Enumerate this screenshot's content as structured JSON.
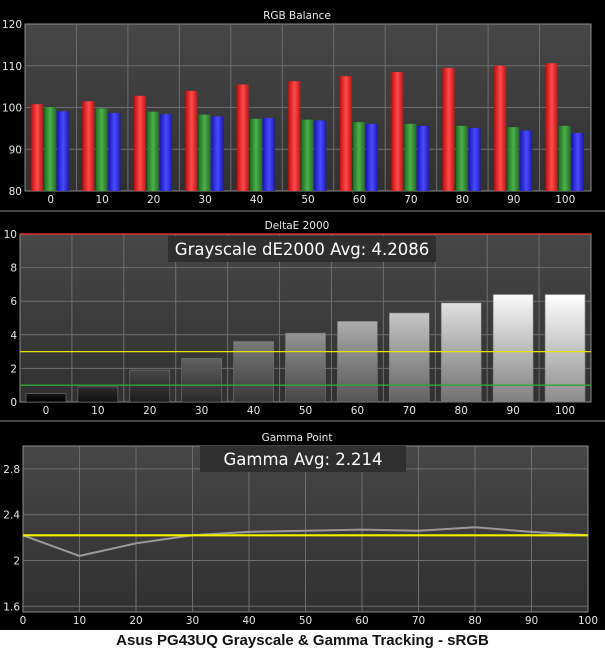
{
  "footer": "Asus PG43UQ Grayscale & Gamma Tracking - sRGB",
  "colors": {
    "background": "#000000",
    "plot_background": "#3c3c3c",
    "grid": "#6e6e6e",
    "red": "#f32a2a",
    "green": "#3c9c3c",
    "blue": "#2f2ff0",
    "threshold_red": "#ff3030",
    "threshold_yellow": "#e4e400",
    "threshold_green": "#2ea82e",
    "gamma_target": "#f2f200",
    "gamma_line": "#9a9a9a"
  },
  "chart_data": [
    {
      "type": "bar",
      "title": "RGB Balance",
      "categories": [
        "0",
        "10",
        "20",
        "30",
        "40",
        "50",
        "60",
        "70",
        "80",
        "90",
        "100"
      ],
      "series": [
        {
          "color_key": "red",
          "values": [
            100.8,
            101.5,
            102.8,
            104.0,
            105.5,
            106.3,
            107.5,
            108.5,
            109.5,
            110.0,
            110.6
          ]
        },
        {
          "color_key": "green",
          "values": [
            100.1,
            99.8,
            99.0,
            98.3,
            97.3,
            97.1,
            96.5,
            96.1,
            95.6,
            95.3,
            95.6
          ]
        },
        {
          "color_key": "blue",
          "values": [
            99.1,
            98.7,
            98.4,
            97.9,
            97.5,
            96.9,
            96.1,
            95.6,
            95.1,
            94.5,
            93.9
          ]
        }
      ],
      "ylim": [
        80,
        120
      ],
      "yticks": [
        80,
        90,
        100,
        110,
        120
      ],
      "grid": true
    },
    {
      "type": "bar",
      "title": "DeltaE 2000",
      "annotation": "Grayscale dE2000 Avg: 4.2086",
      "categories": [
        "0",
        "10",
        "20",
        "30",
        "40",
        "50",
        "60",
        "70",
        "80",
        "90",
        "100"
      ],
      "values": [
        0.5,
        0.9,
        1.9,
        2.6,
        3.6,
        4.1,
        4.8,
        5.3,
        5.9,
        6.4,
        6.4
      ],
      "ylim": [
        0,
        10
      ],
      "yticks": [
        0,
        2,
        4,
        6,
        8,
        10
      ],
      "thresholds": [
        {
          "value": 10,
          "color_key": "threshold_red"
        },
        {
          "value": 3,
          "color_key": "threshold_yellow"
        },
        {
          "value": 1,
          "color_key": "threshold_green"
        }
      ],
      "grid": true
    },
    {
      "type": "line",
      "title": "Gamma Point",
      "annotation": "Gamma Avg: 2.214",
      "x": [
        0,
        10,
        20,
        30,
        40,
        50,
        60,
        70,
        80,
        90,
        100
      ],
      "xticks": [
        "0",
        "10",
        "20",
        "30",
        "40",
        "50",
        "60",
        "70",
        "80",
        "90",
        "100"
      ],
      "values": [
        2.22,
        2.04,
        2.15,
        2.22,
        2.25,
        2.26,
        2.27,
        2.26,
        2.29,
        2.25,
        2.22
      ],
      "target": 2.22,
      "ylim": [
        1.55,
        3.0
      ],
      "yticks": [
        "1.6",
        "2",
        "2.4",
        "2.8"
      ],
      "grid": true
    }
  ]
}
